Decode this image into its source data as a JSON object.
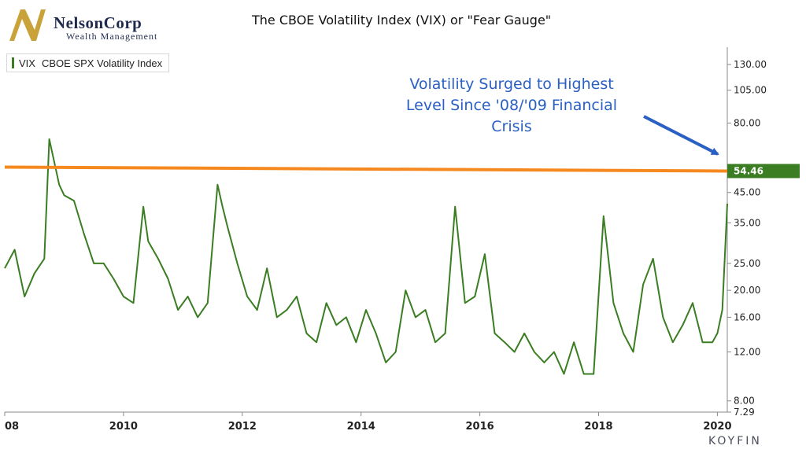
{
  "header": {
    "logo_name": "NelsonCorp",
    "logo_sub": "Wealth Management",
    "title": "The CBOE Volatility Index (VIX) or \"Fear Gauge\""
  },
  "legend": {
    "code": "VIX",
    "label": "CBOE SPX Volatility Index"
  },
  "annotation": {
    "lines": [
      "Volatility Surged to Highest",
      "Level Since '08/'09 Financial",
      "Crisis"
    ]
  },
  "brand": "KOYFIN",
  "colors": {
    "series": "#3a7d22",
    "reference_line": "#f5891f",
    "annotation": "#2a60c4",
    "badge": "#3a7d22",
    "logo_gold": "#c9a33a",
    "logo_navy": "#1f2a4d"
  },
  "chart_data": {
    "type": "line",
    "title": "The CBOE Volatility Index (VIX) or \"Fear Gauge\"",
    "series": [
      {
        "name": "VIX CBOE SPX Volatility Index",
        "x": [
          "2008-01",
          "2008-03",
          "2008-05",
          "2008-07",
          "2008-09",
          "2008-10",
          "2008-11",
          "2008-12",
          "2009-01",
          "2009-03",
          "2009-05",
          "2009-07",
          "2009-09",
          "2009-11",
          "2010-01",
          "2010-03",
          "2010-05",
          "2010-06",
          "2010-08",
          "2010-10",
          "2010-12",
          "2011-02",
          "2011-04",
          "2011-06",
          "2011-08",
          "2011-09",
          "2011-10",
          "2011-12",
          "2012-02",
          "2012-04",
          "2012-06",
          "2012-08",
          "2012-10",
          "2012-12",
          "2013-02",
          "2013-04",
          "2013-06",
          "2013-08",
          "2013-10",
          "2013-12",
          "2014-02",
          "2014-04",
          "2014-06",
          "2014-08",
          "2014-10",
          "2014-12",
          "2015-02",
          "2015-04",
          "2015-06",
          "2015-08",
          "2015-10",
          "2015-12",
          "2016-02",
          "2016-04",
          "2016-06",
          "2016-08",
          "2016-10",
          "2016-12",
          "2017-02",
          "2017-04",
          "2017-06",
          "2017-08",
          "2017-10",
          "2017-12",
          "2018-02",
          "2018-04",
          "2018-06",
          "2018-08",
          "2018-10",
          "2018-12",
          "2019-02",
          "2019-04",
          "2019-06",
          "2019-08",
          "2019-10",
          "2019-12",
          "2020-01",
          "2020-02",
          "2020-03"
        ],
        "values": [
          24,
          28,
          19,
          23,
          26,
          70,
          58,
          48,
          44,
          42,
          32,
          25,
          25,
          22,
          19,
          18,
          40,
          30,
          26,
          22,
          17,
          19,
          16,
          18,
          48,
          40,
          34,
          25,
          19,
          17,
          24,
          16,
          17,
          19,
          14,
          13,
          18,
          15,
          16,
          13,
          17,
          14,
          11,
          12,
          20,
          16,
          17,
          13,
          14,
          40,
          18,
          19,
          27,
          14,
          13,
          12,
          14,
          12,
          11,
          12,
          10,
          13,
          10,
          10,
          37,
          18,
          14,
          12,
          21,
          26,
          16,
          13,
          15,
          18,
          13,
          13,
          14,
          17,
          41
        ]
      }
    ],
    "reference_line": {
      "value": 54.46,
      "label": "54.46"
    },
    "y_axis": {
      "scale": "log",
      "range": [
        7.29,
        150
      ],
      "ticks": [
        "130.00",
        "105.00",
        "80.00",
        "45.00",
        "35.00",
        "25.00",
        "20.00",
        "16.00",
        "12.00",
        "8.00",
        "7.29"
      ]
    },
    "x_axis": {
      "range": [
        "2008-01",
        "2020-03"
      ],
      "ticks": [
        "08",
        "2010",
        "2012",
        "2014",
        "2016",
        "2018",
        "2020"
      ]
    },
    "grid": false,
    "legend_placement": "top-left"
  }
}
